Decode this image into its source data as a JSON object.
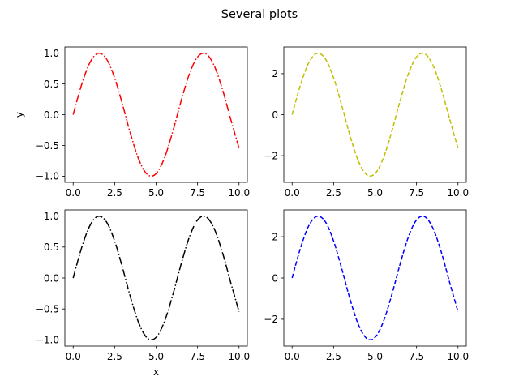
{
  "title": "Several plots",
  "chart_data": [
    {
      "type": "line",
      "position": "top-left",
      "xlabel": "",
      "ylabel": "y",
      "xlim": [
        -0.5,
        10.5
      ],
      "ylim": [
        -1.1,
        1.1
      ],
      "xticks": [
        0,
        2.5,
        5,
        7.5,
        10
      ],
      "xtick_labels": [
        "0.0",
        "2.5",
        "5.0",
        "7.5",
        "10.0"
      ],
      "yticks": [
        1,
        0.5,
        0,
        -0.5,
        -1
      ],
      "ytick_labels": [
        "1.0",
        "0.5",
        "0.0",
        "−0.5",
        "−1.0"
      ],
      "grid": false,
      "series": [
        {
          "color": "#ff0000",
          "style": "dash-dot",
          "x": [
            0,
            0.5,
            1,
            1.5,
            2,
            2.5,
            3,
            3.5,
            4,
            4.5,
            5,
            5.5,
            6,
            6.5,
            7,
            7.5,
            8,
            8.5,
            9,
            9.5,
            10
          ],
          "y": [
            0,
            0.479,
            0.841,
            0.997,
            0.909,
            0.598,
            0.141,
            -0.351,
            -0.757,
            -0.978,
            -0.959,
            -0.706,
            -0.279,
            0.215,
            0.657,
            0.938,
            0.989,
            0.798,
            0.412,
            -0.075,
            -0.544
          ]
        }
      ]
    },
    {
      "type": "line",
      "position": "top-right",
      "xlabel": "",
      "ylabel": "",
      "xlim": [
        -0.5,
        10.5
      ],
      "ylim": [
        -3.3,
        3.3
      ],
      "xticks": [
        0,
        2.5,
        5,
        7.5,
        10
      ],
      "xtick_labels": [
        "0.0",
        "2.5",
        "5.0",
        "7.5",
        "10.0"
      ],
      "yticks": [
        2,
        0,
        -2
      ],
      "ytick_labels": [
        "2",
        "0",
        "−2"
      ],
      "grid": false,
      "series": [
        {
          "color": "#bfbf00",
          "style": "dashed",
          "x": [
            0,
            0.5,
            1,
            1.5,
            2,
            2.5,
            3,
            3.5,
            4,
            4.5,
            5,
            5.5,
            6,
            6.5,
            7,
            7.5,
            8,
            8.5,
            9,
            9.5,
            10
          ],
          "y": [
            0,
            1.438,
            2.524,
            2.992,
            2.728,
            1.795,
            0.423,
            -1.052,
            -2.27,
            -2.933,
            -2.877,
            -2.118,
            -0.838,
            0.645,
            1.971,
            2.814,
            2.968,
            2.394,
            1.236,
            -0.225,
            -1.632
          ]
        }
      ]
    },
    {
      "type": "line",
      "position": "bottom-left",
      "xlabel": "x",
      "ylabel": "",
      "xlim": [
        -0.5,
        10.5
      ],
      "ylim": [
        -1.1,
        1.1
      ],
      "xticks": [
        0,
        2.5,
        5,
        7.5,
        10
      ],
      "xtick_labels": [
        "0.0",
        "2.5",
        "5.0",
        "7.5",
        "10.0"
      ],
      "yticks": [
        1,
        0.5,
        0,
        -0.5,
        -1
      ],
      "ytick_labels": [
        "1.0",
        "0.5",
        "0.0",
        "−0.5",
        "−1.0"
      ],
      "grid": false,
      "series": [
        {
          "color": "#000000",
          "style": "dash-dot",
          "x": [
            0,
            0.5,
            1,
            1.5,
            2,
            2.5,
            3,
            3.5,
            4,
            4.5,
            5,
            5.5,
            6,
            6.5,
            7,
            7.5,
            8,
            8.5,
            9,
            9.5,
            10
          ],
          "y": [
            0,
            0.479,
            0.841,
            0.997,
            0.909,
            0.598,
            0.141,
            -0.351,
            -0.757,
            -0.978,
            -0.959,
            -0.706,
            -0.279,
            0.215,
            0.657,
            0.938,
            0.989,
            0.798,
            0.412,
            -0.075,
            -0.544
          ]
        }
      ]
    },
    {
      "type": "line",
      "position": "bottom-right",
      "xlabel": "",
      "ylabel": "",
      "xlim": [
        -0.5,
        10.5
      ],
      "ylim": [
        -3.3,
        3.3
      ],
      "xticks": [
        0,
        2.5,
        5,
        7.5,
        10
      ],
      "xtick_labels": [
        "0.0",
        "2.5",
        "5.0",
        "7.5",
        "10.0"
      ],
      "yticks": [
        2,
        0,
        -2
      ],
      "ytick_labels": [
        "2",
        "0",
        "−2"
      ],
      "grid": false,
      "series": [
        {
          "color": "#0000ff",
          "style": "dashed",
          "x": [
            0,
            0.5,
            1,
            1.5,
            2,
            2.5,
            3,
            3.5,
            4,
            4.5,
            5,
            5.5,
            6,
            6.5,
            7,
            7.5,
            8,
            8.5,
            9,
            9.5,
            10
          ],
          "y": [
            0,
            1.438,
            2.524,
            2.992,
            2.728,
            1.795,
            0.423,
            -1.052,
            -2.27,
            -2.933,
            -2.877,
            -2.118,
            -0.838,
            0.645,
            1.971,
            2.814,
            2.968,
            2.394,
            1.236,
            -0.225,
            -1.632
          ]
        }
      ]
    }
  ]
}
